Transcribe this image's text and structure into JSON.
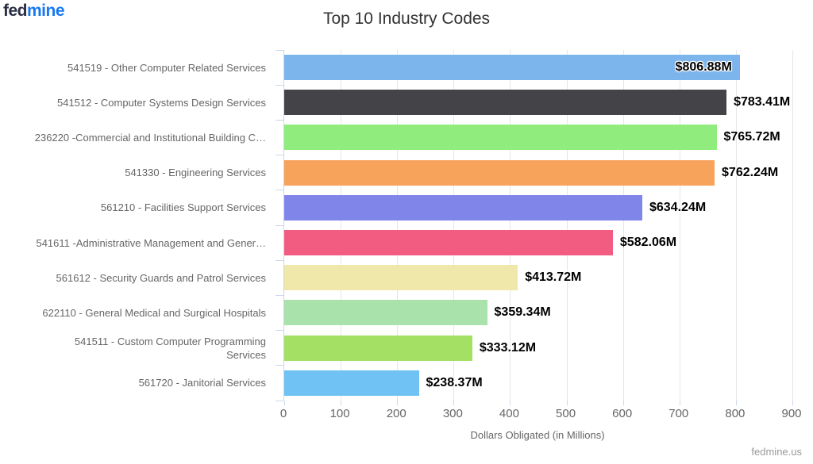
{
  "logo": {
    "part1": "fed",
    "part2": "mine",
    "part1_color": "#2b2e45",
    "part2_color": "#1878f0"
  },
  "watermark": "fedmine.us",
  "chart_data": {
    "type": "bar",
    "orientation": "horizontal",
    "title": "Top 10 Industry Codes",
    "xlabel": "Dollars Obligated (in Millions)",
    "ylabel": "",
    "xlim": [
      0,
      900
    ],
    "xticks": [
      0,
      100,
      200,
      300,
      400,
      500,
      600,
      700,
      800,
      900
    ],
    "grid": true,
    "legend": "none",
    "categories": [
      "541519 - Other Computer Related Services",
      "541512 - Computer Systems Design Services",
      "236220 -Commercial and Institutional Building C…",
      "541330 - Engineering Services",
      "561210 - Facilities Support Services",
      "541611 -Administrative Management and Gener…",
      "561612 - Security Guards and Patrol Services",
      "622110 - General Medical and Surgical Hospitals",
      "541511 - Custom Computer Programming\nServices",
      "561720 - Janitorial Services"
    ],
    "values": [
      806.88,
      783.41,
      765.72,
      762.24,
      634.24,
      582.06,
      413.72,
      359.34,
      333.12,
      238.37
    ],
    "data_labels": [
      "$806.88M",
      "$783.41M",
      "$765.72M",
      "$762.24M",
      "$634.24M",
      "$582.06M",
      "$413.72M",
      "$359.34M",
      "$333.12M",
      "$238.37M"
    ],
    "bar_colors": [
      "#7cb5ec",
      "#434348",
      "#90ed7d",
      "#f7a35c",
      "#8085e9",
      "#f15c80",
      "#f0e8ab",
      "#a9e2ab",
      "#a3e063",
      "#6fc2f3"
    ],
    "axis_color": "#ccd6eb",
    "grid_color": "#e6e6e6",
    "tick_label_color": "#666666",
    "title_color": "#333333",
    "value_label_color": "#000000"
  }
}
